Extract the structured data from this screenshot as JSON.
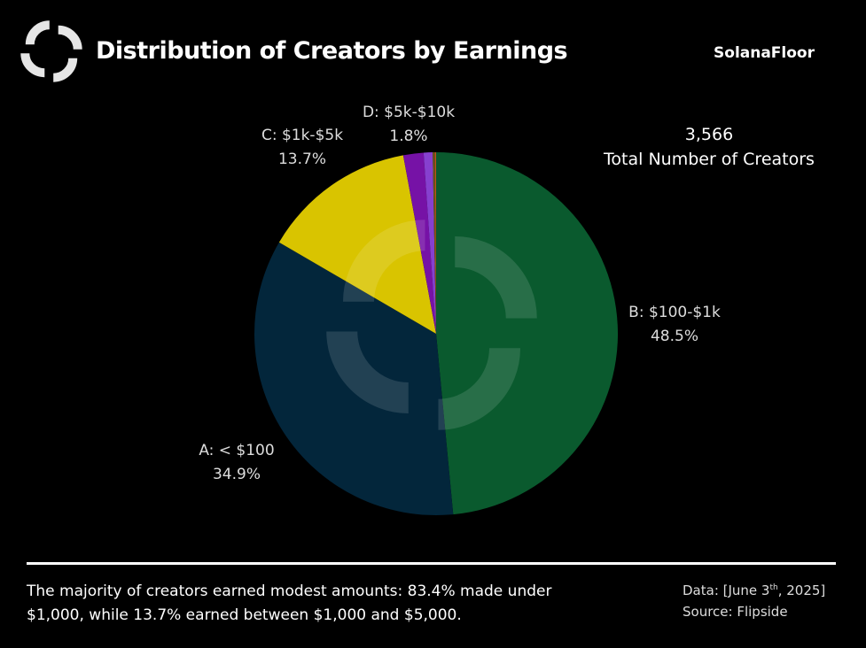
{
  "header": {
    "title": "Distribution of Creators by Earnings",
    "brand": "SolanaFloor",
    "logo_icon": "solanafloor-logo-icon"
  },
  "summary": {
    "value": "3,566",
    "label": "Total Number of Creators"
  },
  "chart_data": {
    "type": "pie",
    "title": "Distribution of Creators by Earnings",
    "start": "top",
    "direction": "clockwise",
    "slices": [
      {
        "label": "B: $100-$1k",
        "value": 48.5,
        "text": "48.5%",
        "color": "#0a5a2e"
      },
      {
        "label": "A: < $100",
        "value": 34.9,
        "text": "34.9%",
        "color": "#03263b"
      },
      {
        "label": "C: $1k-$5k",
        "value": 13.7,
        "text": "13.7%",
        "color": "#d9c400"
      },
      {
        "label": "D: $5k-$10k",
        "value": 1.8,
        "text": "1.8%",
        "color": "#7612a6"
      },
      {
        "label": "",
        "value": 0.8,
        "text": "",
        "color": "#8640cf"
      },
      {
        "label": "",
        "value": 0.2,
        "text": "",
        "color": "#6b5418"
      },
      {
        "label": "",
        "value": 0.1,
        "text": "",
        "color": "#c0501a"
      }
    ]
  },
  "footer": {
    "line1": "The majority of creators earned modest amounts: 83.4% made under",
    "line2": "$1,000, while 13.7% earned between $1,000 and $5,000.",
    "data_prefix": "Data: [June 3",
    "data_sup": "th",
    "data_suffix": ", 2025]",
    "source": "Source: Flipside"
  }
}
